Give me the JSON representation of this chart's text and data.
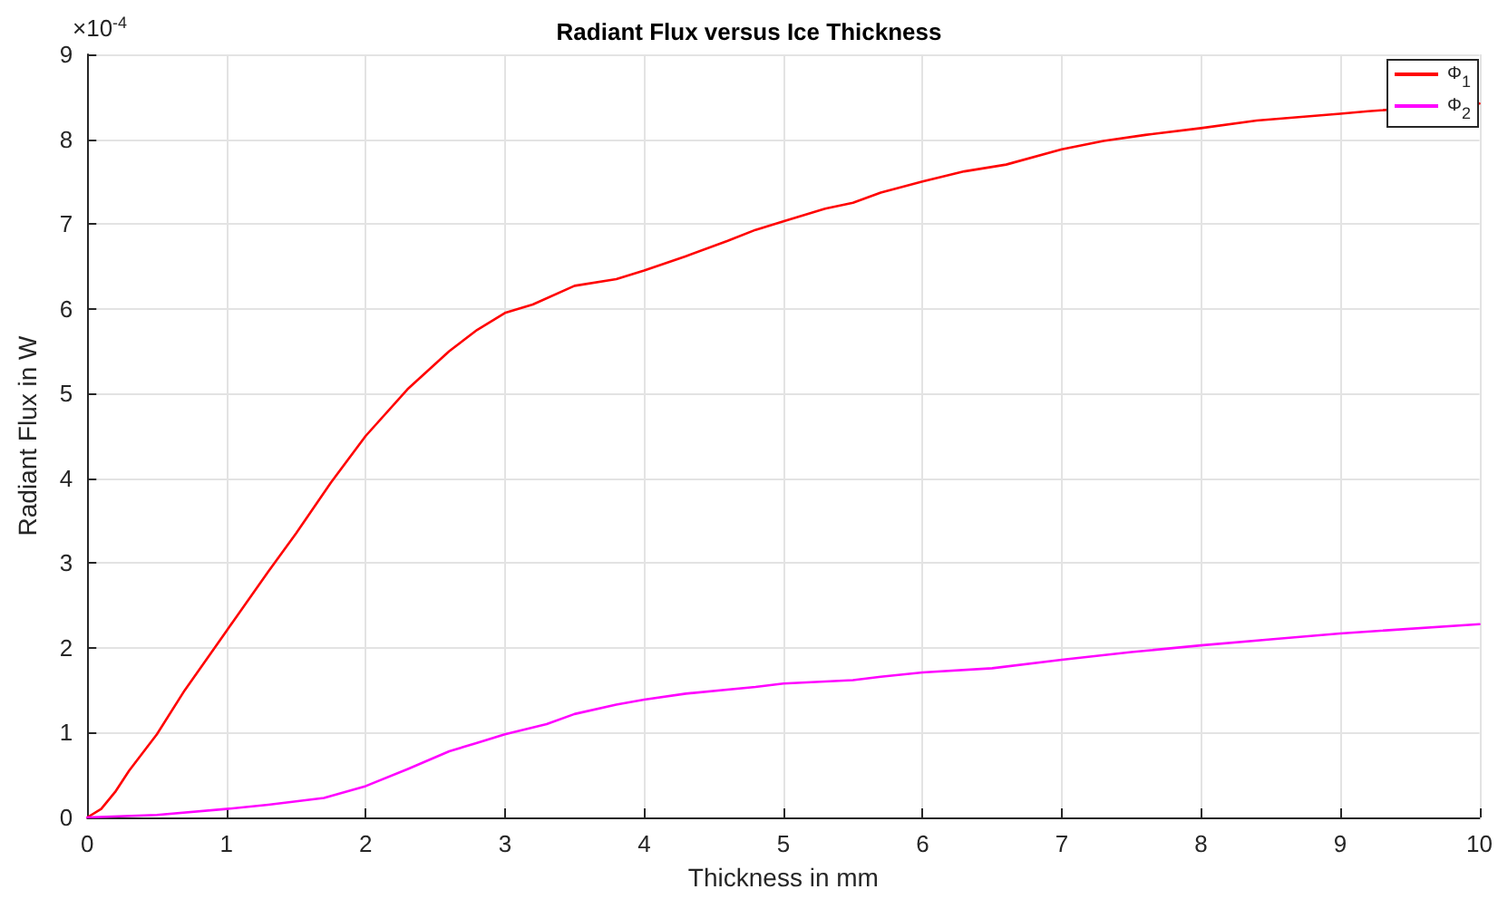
{
  "chart_data": {
    "type": "line",
    "title": "Radiant Flux versus Ice Thickness",
    "xlabel": "Thickness in mm",
    "ylabel": "Radiant Flux in W",
    "annotations": [
      "×10$^{-4}$"
    ],
    "xlim": [
      0,
      10
    ],
    "xticks": [
      0,
      1,
      2,
      3,
      4,
      5,
      6,
      7,
      8,
      9,
      10
    ],
    "ylim": [
      0,
      9
    ],
    "yticks": [
      0,
      1,
      2,
      3,
      4,
      5,
      6,
      7,
      8,
      9
    ],
    "grid": true,
    "legend": "top right",
    "marker": "none",
    "line_style": "solid",
    "series": [
      {
        "name": "Φ$_{1}$",
        "color": "#ff0000",
        "x": [
          0,
          0.1,
          0.2,
          0.3,
          0.5,
          0.7,
          1,
          1.3,
          1.5,
          1.75,
          2,
          2.3,
          2.6,
          2.8,
          3,
          3.2,
          3.5,
          3.8,
          4,
          4.3,
          4.6,
          4.8,
          5,
          5.3,
          5.5,
          5.7,
          6,
          6.3,
          6.6,
          7,
          7.3,
          7.6,
          8,
          8.4,
          9,
          9.2,
          10
        ],
        "values": [
          0,
          0.1,
          0.3,
          0.55,
          0.98,
          1.5,
          2.2,
          2.9,
          3.35,
          3.95,
          4.5,
          5.05,
          5.5,
          5.75,
          5.95,
          6.05,
          6.27,
          6.35,
          6.45,
          6.62,
          6.8,
          6.93,
          7.03,
          7.18,
          7.25,
          7.37,
          7.5,
          7.62,
          7.7,
          7.88,
          7.98,
          8.05,
          8.13,
          8.22,
          8.3,
          8.33,
          8.42
        ]
      },
      {
        "name": "Φ$_{2}$",
        "color": "#ff00ff",
        "x": [
          0,
          0.5,
          1,
          1.3,
          1.7,
          2,
          2.3,
          2.6,
          2.8,
          3,
          3.3,
          3.5,
          3.8,
          4,
          4.3,
          4.8,
          5,
          5.5,
          5.7,
          6,
          6.5,
          7,
          7.5,
          8,
          8.5,
          9,
          10
        ],
        "values": [
          0,
          0.03,
          0.1,
          0.15,
          0.23,
          0.37,
          0.57,
          0.78,
          0.88,
          0.98,
          1.1,
          1.22,
          1.33,
          1.39,
          1.46,
          1.54,
          1.58,
          1.62,
          1.66,
          1.71,
          1.76,
          1.86,
          1.95,
          2.03,
          2.1,
          2.17,
          2.28
        ]
      }
    ]
  }
}
